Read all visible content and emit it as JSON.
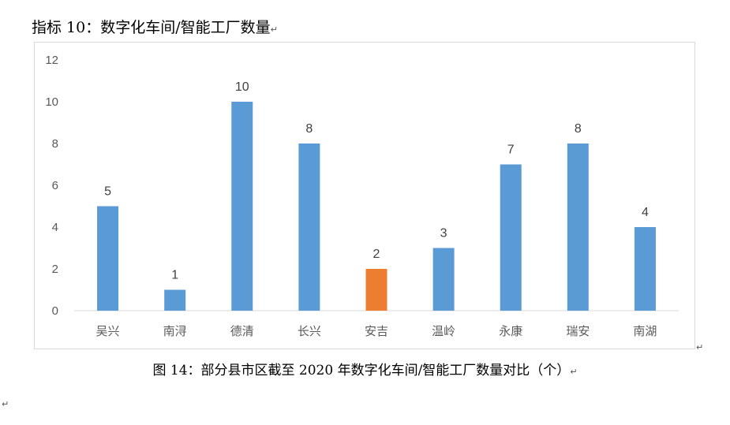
{
  "heading": "指标 10：数字化车间/智能工厂数量",
  "caption": "图 14：部分县市区截至 2020 年数字化车间/智能工厂数量对比（个）",
  "paragraph_mark": "↵",
  "chart_data": {
    "type": "bar",
    "title": "",
    "xlabel": "",
    "ylabel": "",
    "categories": [
      "吴兴",
      "南浔",
      "德清",
      "长兴",
      "安吉",
      "温岭",
      "永康",
      "瑞安",
      "南湖"
    ],
    "values": [
      5,
      1,
      10,
      8,
      2,
      3,
      7,
      8,
      4
    ],
    "ylim": [
      0,
      12
    ],
    "yticks": [
      0,
      2,
      4,
      6,
      8,
      10,
      12
    ],
    "grid": false,
    "legend": "none",
    "colors": {
      "bar": "#5b9bd5",
      "highlight": "#ed7d31",
      "axis": "#d9d9d9"
    },
    "highlight_category": "安吉"
  }
}
